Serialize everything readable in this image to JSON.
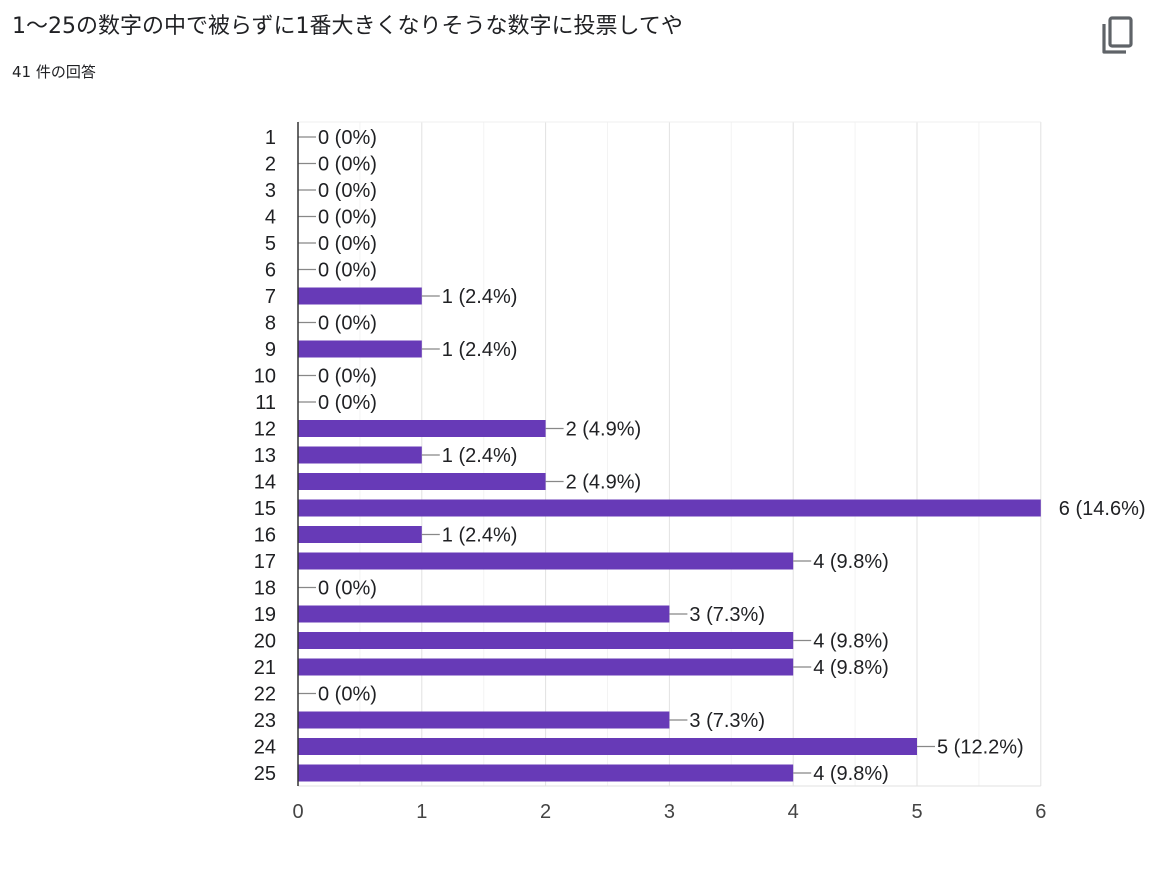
{
  "header": {
    "title": "1〜25の数字の中で被らずに1番大きくなりそうな数字に投票してや",
    "response_count": "41 件の回答",
    "copy_icon": "copy-icon"
  },
  "colors": {
    "bar": "#673ab7",
    "text": "#202124",
    "tick_text": "#444444",
    "grid": "#ececec",
    "leader": "#888888"
  },
  "chart_data": {
    "type": "bar",
    "orientation": "horizontal",
    "categories": [
      "1",
      "2",
      "3",
      "4",
      "5",
      "6",
      "7",
      "8",
      "9",
      "10",
      "11",
      "12",
      "13",
      "14",
      "15",
      "16",
      "17",
      "18",
      "19",
      "20",
      "21",
      "22",
      "23",
      "24",
      "25"
    ],
    "values": [
      0,
      0,
      0,
      0,
      0,
      0,
      1,
      0,
      1,
      0,
      0,
      2,
      1,
      2,
      6,
      1,
      4,
      0,
      3,
      4,
      4,
      0,
      3,
      5,
      4
    ],
    "data_labels": [
      "0 (0%)",
      "0 (0%)",
      "0 (0%)",
      "0 (0%)",
      "0 (0%)",
      "0 (0%)",
      "1 (2.4%)",
      "0 (0%)",
      "1 (2.4%)",
      "0 (0%)",
      "0 (0%)",
      "2 (4.9%)",
      "1 (2.4%)",
      "2 (4.9%)",
      "6 (14.6%)",
      "1 (2.4%)",
      "4 (9.8%)",
      "0 (0%)",
      "3 (7.3%)",
      "4 (9.8%)",
      "4 (9.8%)",
      "0 (0%)",
      "3 (7.3%)",
      "5 (12.2%)",
      "4 (9.8%)"
    ],
    "x_ticks": [
      "0",
      "1",
      "2",
      "3",
      "4",
      "5",
      "6"
    ],
    "xlim": [
      0,
      6
    ],
    "grid": true,
    "title": "",
    "xlabel": "",
    "ylabel": ""
  }
}
